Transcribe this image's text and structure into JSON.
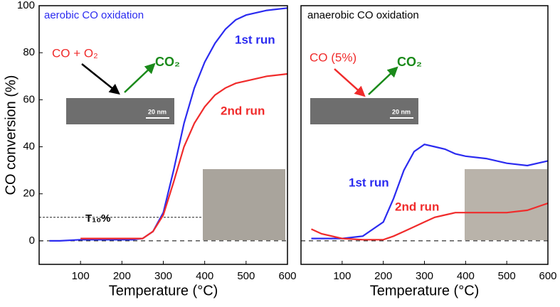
{
  "chart_data": [
    {
      "type": "line",
      "title": "aerobic CO oxidation",
      "title_color": "#2b2bf0",
      "x_label": "Temperature (°C)",
      "y_label": "CO conversion (%)",
      "x": [
        25,
        50,
        100,
        150,
        200,
        225,
        250,
        275,
        300,
        325,
        350,
        375,
        400,
        425,
        450,
        475,
        500,
        550,
        600
      ],
      "series": [
        {
          "name": "1st run",
          "color": "#2b2bf0",
          "values": [
            0,
            0,
            0.5,
            0.5,
            0.5,
            0.5,
            1,
            4,
            12,
            30,
            50,
            65,
            76,
            84,
            90,
            94,
            96,
            98,
            99
          ]
        },
        {
          "name": "2nd run",
          "color": "#f02b2b",
          "values": [
            null,
            null,
            1,
            1,
            1,
            1,
            1,
            4,
            11,
            25,
            40,
            50,
            57,
            62,
            65,
            67,
            68,
            70,
            71
          ]
        }
      ],
      "xlim": [
        0,
        600
      ],
      "xticks": [
        100,
        200,
        300,
        400,
        500,
        600
      ],
      "ylim": [
        -10,
        100
      ],
      "yticks": [
        0,
        20,
        40,
        60,
        80,
        100
      ],
      "reference_line": 0,
      "threshold": 10,
      "threshold_label": "T₁₀%",
      "reactant_label": "CO + O₂",
      "product_label": "CO₂",
      "scale_bar_label": "20 nm"
    },
    {
      "type": "line",
      "title": "anaerobic CO oxidation",
      "title_color": "#000000",
      "x_label": "Temperature (°C)",
      "x": [
        25,
        50,
        100,
        150,
        200,
        225,
        250,
        275,
        300,
        325,
        350,
        375,
        400,
        450,
        500,
        550,
        600
      ],
      "series": [
        {
          "name": "1st run",
          "color": "#2b2bf0",
          "values": [
            1,
            1,
            1,
            2,
            8,
            18,
            30,
            38,
            41,
            40,
            39,
            37,
            36,
            35,
            33,
            32,
            34
          ]
        },
        {
          "name": "2nd run",
          "color": "#f02b2b",
          "values": [
            5,
            3,
            1,
            0.5,
            0.5,
            2,
            4,
            6,
            8,
            10,
            11,
            12,
            12,
            12,
            12,
            13,
            16
          ]
        }
      ],
      "xlim": [
        0,
        600
      ],
      "xticks": [
        100,
        200,
        300,
        400,
        500,
        600
      ],
      "ylim": [
        -10,
        100
      ],
      "reference_line": 0,
      "reactant_label": "CO (5%)",
      "product_label": "CO₂",
      "scale_bar_label": "20 nm"
    }
  ]
}
